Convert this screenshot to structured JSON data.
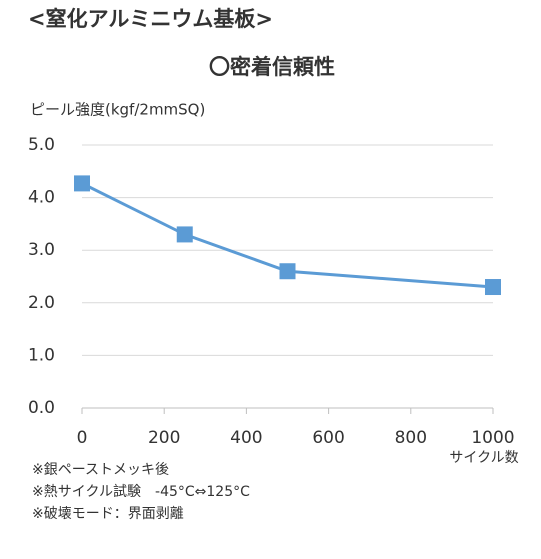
{
  "chart_data": {
    "type": "line",
    "heading": "<窒化アルミニウム基板>",
    "title": "〇密着信頼性",
    "y_label": "ピール強度(kgf/2mmSQ)",
    "x_label": "サイクル数",
    "x": [
      0,
      250,
      500,
      1000
    ],
    "series": [
      {
        "name": "ピール強度",
        "color": "#5b9bd5",
        "values": [
          4.27,
          3.3,
          2.6,
          2.3
        ]
      }
    ],
    "xlim": [
      0,
      1000
    ],
    "xticks": [
      0,
      200,
      400,
      600,
      800,
      1000
    ],
    "ylim": [
      0,
      5
    ],
    "yticks": [
      {
        "value": 0,
        "label": "0.0"
      },
      {
        "value": 1,
        "label": "1.0"
      },
      {
        "value": 2,
        "label": "2.0"
      },
      {
        "value": 3,
        "label": "3.0"
      },
      {
        "value": 4,
        "label": "4.0"
      },
      {
        "value": 5,
        "label": "5.0"
      }
    ],
    "grid": true,
    "notes": [
      "※銀ペーストメッキ後",
      "※熱サイクル試験　-45°C⇔125°C",
      "※破壊モード：界面剥離"
    ]
  }
}
